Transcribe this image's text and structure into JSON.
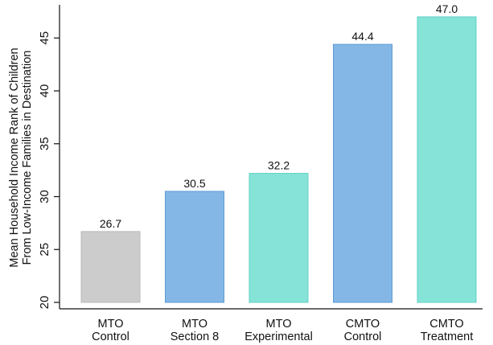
{
  "chart_data": {
    "type": "bar",
    "ylabel_lines": [
      "Mean Household Income Rank of Children",
      "From Low-Income Families in Destination"
    ],
    "xlabel": "",
    "ylim": [
      20,
      48
    ],
    "yticks": [
      20,
      25,
      30,
      35,
      40,
      45
    ],
    "grid": false,
    "categories": [
      {
        "line1": "MTO",
        "line2": "Control"
      },
      {
        "line1": "MTO",
        "line2": "Section 8"
      },
      {
        "line1": "MTO",
        "line2": "Experimental"
      },
      {
        "line1": "CMTO",
        "line2": "Control"
      },
      {
        "line1": "CMTO",
        "line2": "Treatment"
      }
    ],
    "values": [
      26.7,
      30.5,
      32.2,
      44.4,
      47.0
    ],
    "value_labels": [
      "26.7",
      "30.5",
      "32.2",
      "44.4",
      "47.0"
    ],
    "bar_colors": [
      {
        "fill": "#cccccc",
        "stroke": "#b8b8b8"
      },
      {
        "fill": "#84b7e5",
        "stroke": "#5e9bd3"
      },
      {
        "fill": "#86e3d8",
        "stroke": "#5fd0c2"
      },
      {
        "fill": "#84b7e5",
        "stroke": "#5e9bd3"
      },
      {
        "fill": "#86e3d8",
        "stroke": "#5fd0c2"
      }
    ]
  }
}
